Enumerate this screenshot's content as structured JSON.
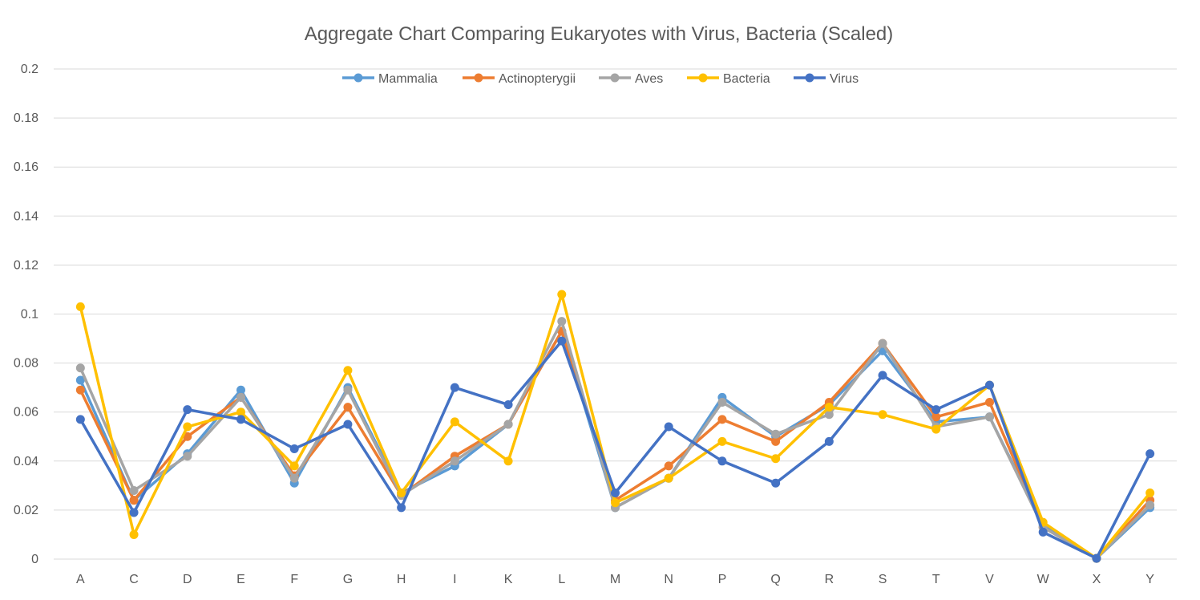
{
  "chart_data": {
    "type": "line",
    "title": "Aggregate Chart Comparing Eukaryotes with Virus, Bacteria (Scaled)",
    "xlabel": "",
    "ylabel": "",
    "ylim": [
      0,
      0.2
    ],
    "yticks": [
      "0",
      "0.02",
      "0.04",
      "0.06",
      "0.08",
      "0.1",
      "0.12",
      "0.14",
      "0.16",
      "0.18",
      "0.2"
    ],
    "grid": true,
    "legend_position": "top",
    "categories": [
      "A",
      "C",
      "D",
      "E",
      "F",
      "G",
      "H",
      "I",
      "K",
      "L",
      "M",
      "N",
      "P",
      "Q",
      "R",
      "S",
      "T",
      "V",
      "W",
      "X",
      "Y"
    ],
    "series": [
      {
        "name": "Mammalia",
        "color": "#5B9BD5",
        "values": [
          0.073,
          0.024,
          0.043,
          0.069,
          0.031,
          0.07,
          0.027,
          0.038,
          0.055,
          0.093,
          0.021,
          0.033,
          0.066,
          0.05,
          0.063,
          0.085,
          0.056,
          0.058,
          0.014,
          0.0003,
          0.021
        ]
      },
      {
        "name": "Actinopterygii",
        "color": "#ED7D31",
        "values": [
          0.069,
          0.024,
          0.05,
          0.066,
          0.034,
          0.062,
          0.026,
          0.042,
          0.055,
          0.093,
          0.024,
          0.038,
          0.057,
          0.048,
          0.064,
          0.088,
          0.058,
          0.064,
          0.013,
          0.0003,
          0.024
        ]
      },
      {
        "name": "Aves",
        "color": "#A5A5A5",
        "values": [
          0.078,
          0.028,
          0.042,
          0.066,
          0.033,
          0.069,
          0.026,
          0.04,
          0.055,
          0.097,
          0.021,
          0.033,
          0.064,
          0.051,
          0.059,
          0.088,
          0.054,
          0.058,
          0.013,
          0.0003,
          0.022
        ]
      },
      {
        "name": "Bacteria",
        "color": "#FFC000",
        "values": [
          0.103,
          0.01,
          0.054,
          0.06,
          0.038,
          0.077,
          0.027,
          0.056,
          0.04,
          0.108,
          0.023,
          0.033,
          0.048,
          0.041,
          0.062,
          0.059,
          0.053,
          0.071,
          0.015,
          0.0003,
          0.027
        ]
      },
      {
        "name": "Virus",
        "color": "#4472C4",
        "values": [
          0.057,
          0.019,
          0.061,
          0.057,
          0.045,
          0.055,
          0.021,
          0.07,
          0.063,
          0.089,
          0.027,
          0.054,
          0.04,
          0.031,
          0.048,
          0.075,
          0.061,
          0.071,
          0.011,
          0.0003,
          0.043
        ]
      }
    ]
  }
}
